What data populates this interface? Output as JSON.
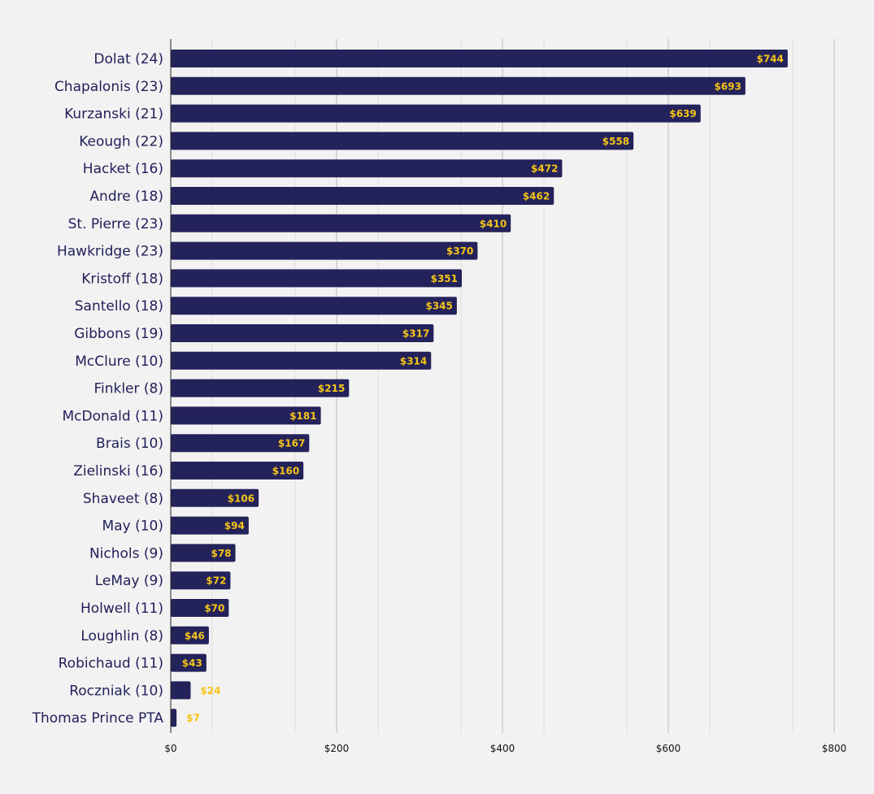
{
  "chart_data": {
    "type": "bar",
    "orientation": "horizontal",
    "categories": [
      "Dolat (24)",
      "Chapalonis (23)",
      "Kurzanski (21)",
      "Keough (22)",
      "Hacket (16)",
      "Andre (18)",
      "St. Pierre (23)",
      "Hawkridge (23)",
      "Kristoff (18)",
      "Santello (18)",
      "Gibbons (19)",
      "McClure (10)",
      "Finkler (8)",
      "McDonald (11)",
      "Brais (10)",
      "Zielinski (16)",
      "Shaveet (8)",
      "May (10)",
      "Nichols (9)",
      "LeMay (9)",
      "Holwell (11)",
      "Loughlin (8)",
      "Robichaud (11)",
      "Roczniak (10)",
      "Thomas Prince PTA"
    ],
    "values": [
      744,
      693,
      639,
      558,
      472,
      462,
      410,
      370,
      351,
      345,
      317,
      314,
      215,
      181,
      167,
      160,
      106,
      94,
      78,
      72,
      70,
      46,
      43,
      24,
      7
    ],
    "value_labels": [
      "$744",
      "$693",
      "$639",
      "$558",
      "$472",
      "$462",
      "$410",
      "$370",
      "$351",
      "$345",
      "$317",
      "$314",
      "$215",
      "$181",
      "$167",
      "$160",
      "$106",
      "$94",
      "$78",
      "$72",
      "$70",
      "$46",
      "$43",
      "$24",
      "$7"
    ],
    "xlim": [
      0,
      800
    ],
    "x_ticks": [
      0,
      200,
      400,
      600,
      800
    ],
    "x_tick_labels": [
      "$0",
      "$200",
      "$400",
      "$600",
      "$800"
    ],
    "title": "",
    "xlabel": "",
    "ylabel": "",
    "grid": true,
    "legend": "none",
    "colors": {
      "bar": "#24225a",
      "value_label": "#f5c518",
      "category_label": "#22205a",
      "background": "#f2f2f2",
      "major_grid": "#bbbbbb",
      "minor_grid": "#dddddd"
    }
  }
}
